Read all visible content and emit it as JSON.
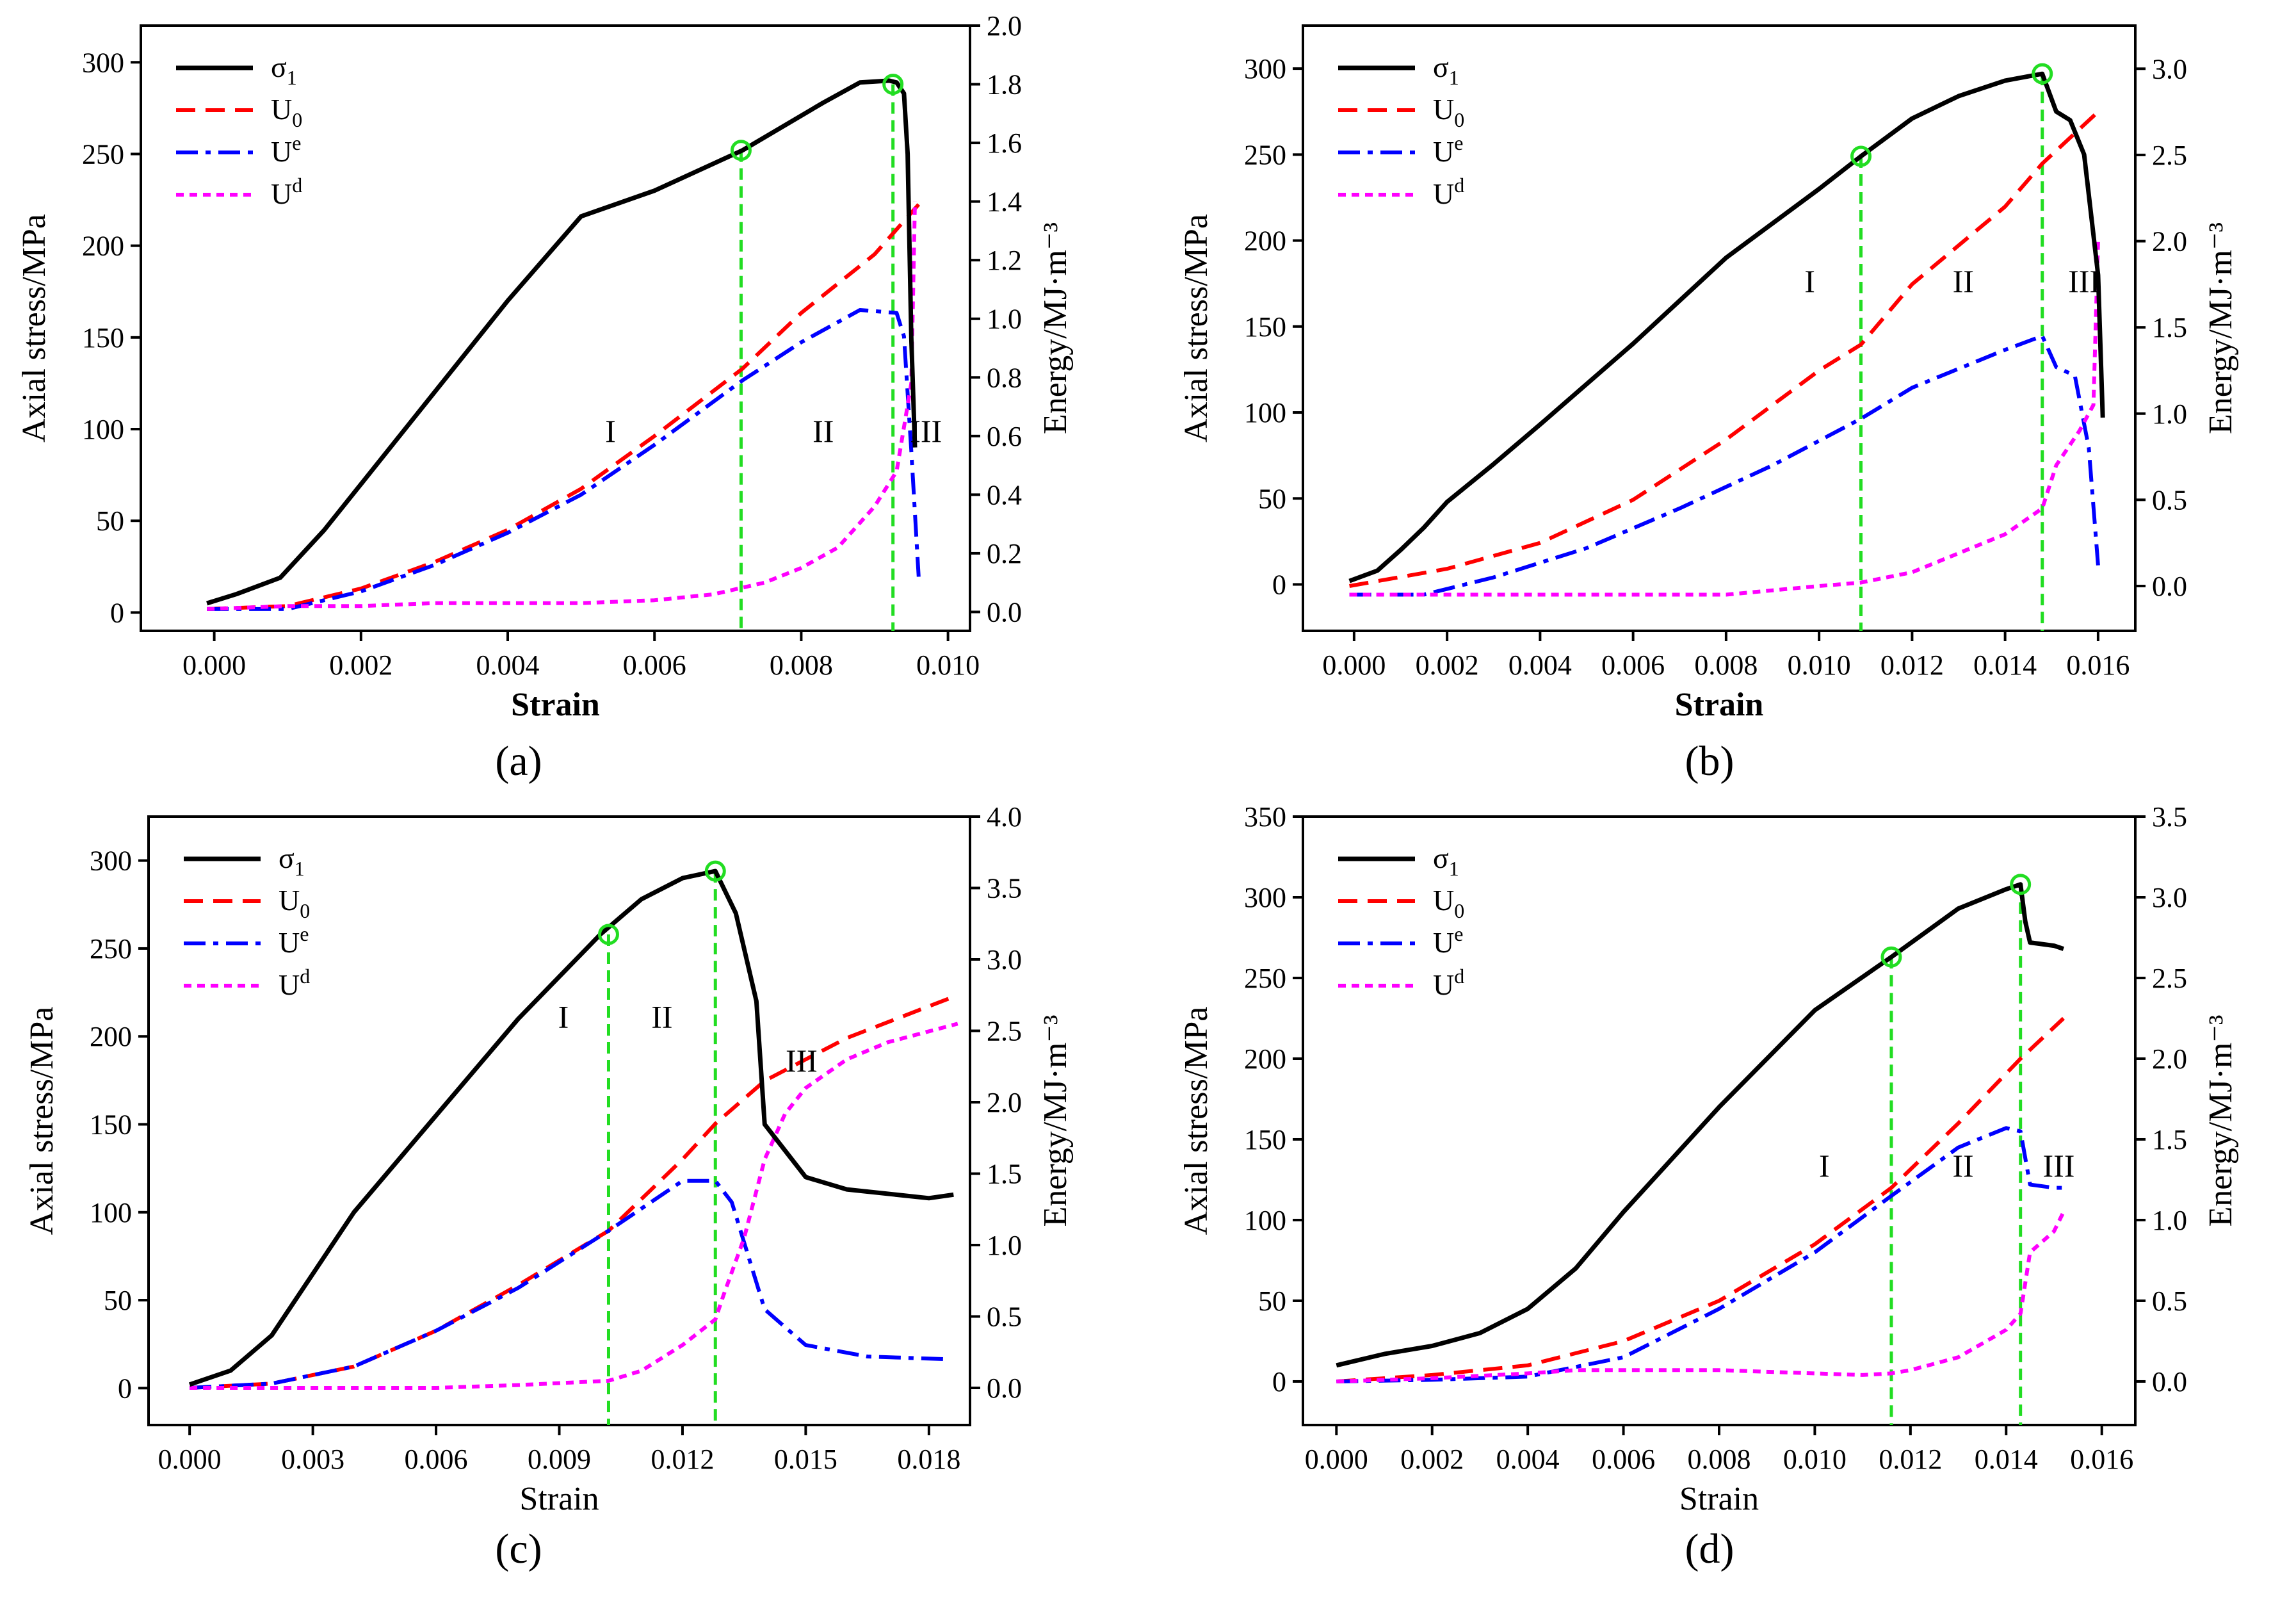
{
  "colors": {
    "sigma1": "#000000",
    "U0": "#ff0000",
    "Ue": "#0000ff",
    "Ud": "#ff00ff",
    "markers": "#22dd22"
  },
  "chart_data": [
    {
      "type": "line",
      "panel_label": "(a)",
      "xlabel": "Strain",
      "ylabel_left": "Axial stress/MPa",
      "ylabel_right": "Energy/MJ·m⁻³",
      "xlim": [
        -0.001,
        0.0103
      ],
      "ylim_left": [
        -10,
        320
      ],
      "ylim_right": [
        -0.0645,
        2.0
      ],
      "xticks": [
        0.0,
        0.002,
        0.004,
        0.006,
        0.008,
        0.01
      ],
      "xtick_decimals": 3,
      "yticks_left": [
        0,
        50,
        100,
        150,
        200,
        250,
        300
      ],
      "yticks_right": [
        0.0,
        0.2,
        0.4,
        0.6,
        0.8,
        1.0,
        1.2,
        1.4,
        1.6,
        1.8,
        2.0
      ],
      "ytick_right_decimals": 1,
      "legend": [
        {
          "key": "sigma1",
          "main": "σ",
          "sub": "1",
          "sup": ""
        },
        {
          "key": "U0",
          "main": "U",
          "sub": "0",
          "sup": ""
        },
        {
          "key": "Ue",
          "main": "U",
          "sub": "",
          "sup": "e"
        },
        {
          "key": "Ud",
          "main": "U",
          "sub": "",
          "sup": "d"
        }
      ],
      "stage_labels": [
        {
          "text": "I",
          "x": 0.0054,
          "y_left": 93
        },
        {
          "text": "II",
          "x": 0.0083,
          "y_left": 93
        },
        {
          "text": "III",
          "x": 0.0097,
          "y_left": 93
        }
      ],
      "markers": [
        {
          "x": 0.00718,
          "y_left": 252
        },
        {
          "x": 0.00925,
          "y_left": 288
        }
      ],
      "stress": {
        "x": [
          -0.0001,
          0.0003,
          0.0009,
          0.0015,
          0.002,
          0.003,
          0.004,
          0.005,
          0.006,
          0.0072,
          0.0083,
          0.0088,
          0.0092,
          0.0093,
          0.0094,
          0.00945,
          0.0095,
          0.00955
        ],
        "y": [
          5,
          10,
          19,
          45,
          70,
          120,
          170,
          216,
          230,
          252,
          278,
          289,
          290,
          289,
          283,
          250,
          150,
          90
        ]
      },
      "U0": {
        "x": [
          -0.0001,
          0.001,
          0.002,
          0.003,
          0.004,
          0.005,
          0.006,
          0.0072,
          0.008,
          0.009,
          0.0096
        ],
        "y": [
          0.01,
          0.02,
          0.08,
          0.17,
          0.28,
          0.42,
          0.6,
          0.83,
          1.02,
          1.22,
          1.39
        ]
      },
      "Ue": {
        "x": [
          -0.0001,
          0.001,
          0.002,
          0.003,
          0.004,
          0.005,
          0.006,
          0.0072,
          0.008,
          0.0088,
          0.0093,
          0.0094,
          0.0095,
          0.0096
        ],
        "y": [
          0.01,
          0.01,
          0.07,
          0.16,
          0.27,
          0.4,
          0.57,
          0.79,
          0.92,
          1.03,
          1.02,
          0.94,
          0.55,
          0.12
        ]
      },
      "Ud": {
        "x": [
          -0.0001,
          0.001,
          0.002,
          0.003,
          0.004,
          0.005,
          0.006,
          0.0068,
          0.0075,
          0.008,
          0.0085,
          0.009,
          0.0093,
          0.0095,
          0.00955
        ],
        "y": [
          0.01,
          0.02,
          0.02,
          0.03,
          0.03,
          0.03,
          0.04,
          0.06,
          0.1,
          0.15,
          0.22,
          0.36,
          0.48,
          0.78,
          1.4
        ]
      }
    },
    {
      "type": "line",
      "panel_label": "(b)",
      "xlabel": "Strain",
      "ylabel_left": "Axial stress/MPa",
      "ylabel_right": "Energy/MJ·m⁻³",
      "xlim": [
        -0.0011,
        0.0168
      ],
      "ylim_left": [
        -27,
        325
      ],
      "ylim_right": [
        -0.26,
        3.25
      ],
      "xticks": [
        0.0,
        0.002,
        0.004,
        0.006,
        0.008,
        0.01,
        0.012,
        0.014,
        0.016
      ],
      "xtick_decimals": 3,
      "yticks_left": [
        0,
        50,
        100,
        150,
        200,
        250,
        300
      ],
      "yticks_right": [
        0.0,
        0.5,
        1.0,
        1.5,
        2.0,
        2.5,
        3.0
      ],
      "ytick_right_decimals": 1,
      "legend": [
        {
          "key": "sigma1",
          "main": "σ",
          "sub": "1",
          "sup": ""
        },
        {
          "key": "U0",
          "main": "U",
          "sub": "0",
          "sup": ""
        },
        {
          "key": "Ue",
          "main": "U",
          "sub": "",
          "sup": "e"
        },
        {
          "key": "Ud",
          "main": "U",
          "sub": "",
          "sup": "d"
        }
      ],
      "stage_labels": [
        {
          "text": "I",
          "x": 0.0098,
          "y_left": 170
        },
        {
          "text": "II",
          "x": 0.0131,
          "y_left": 170
        },
        {
          "text": "III",
          "x": 0.0157,
          "y_left": 170
        }
      ],
      "markers": [
        {
          "x": 0.0109,
          "y_left": 249
        },
        {
          "x": 0.0148,
          "y_left": 297
        }
      ],
      "stress": {
        "x": [
          -0.0001,
          0.0005,
          0.001,
          0.0015,
          0.002,
          0.003,
          0.004,
          0.006,
          0.008,
          0.01,
          0.0109,
          0.012,
          0.013,
          0.014,
          0.0148,
          0.0151,
          0.0154,
          0.0157,
          0.016,
          0.0161
        ],
        "y": [
          2,
          8,
          20,
          33,
          48,
          70,
          93,
          140,
          190,
          230,
          249,
          271,
          284,
          293,
          297,
          275,
          270,
          250,
          180,
          97
        ]
      },
      "U0": {
        "x": [
          -0.0001,
          0.002,
          0.004,
          0.006,
          0.008,
          0.01,
          0.0109,
          0.012,
          0.014,
          0.0148,
          0.016
        ],
        "y": [
          0,
          0.1,
          0.25,
          0.5,
          0.85,
          1.25,
          1.4,
          1.75,
          2.2,
          2.45,
          2.75
        ]
      },
      "Ue": {
        "x": [
          -0.0001,
          0.0015,
          0.003,
          0.005,
          0.007,
          0.009,
          0.0109,
          0.012,
          0.014,
          0.0148,
          0.0151,
          0.0155,
          0.0158,
          0.016
        ],
        "y": [
          -0.05,
          -0.05,
          0.05,
          0.22,
          0.45,
          0.7,
          0.97,
          1.15,
          1.37,
          1.45,
          1.27,
          1.22,
          0.8,
          0.12
        ]
      },
      "Ud": {
        "x": [
          -0.0001,
          0.002,
          0.004,
          0.006,
          0.008,
          0.01,
          0.0109,
          0.012,
          0.014,
          0.0148,
          0.0151,
          0.0156,
          0.0159,
          0.016
        ],
        "y": [
          -0.05,
          -0.05,
          -0.05,
          -0.05,
          -0.05,
          0.0,
          0.02,
          0.08,
          0.3,
          0.45,
          0.7,
          0.9,
          1.05,
          2.0
        ]
      }
    },
    {
      "type": "line",
      "panel_label": "(c)",
      "xlabel": "Strain",
      "ylabel_left": "Axial stress/MPa",
      "ylabel_right": "Energy/MJ·m⁻³",
      "xlim": [
        -0.001,
        0.019
      ],
      "ylim_left": [
        -21,
        325
      ],
      "ylim_right": [
        -0.26,
        4.0
      ],
      "xticks": [
        0.0,
        0.003,
        0.006,
        0.009,
        0.012,
        0.015,
        0.018
      ],
      "xtick_decimals": 3,
      "yticks_left": [
        0,
        50,
        100,
        150,
        200,
        250,
        300
      ],
      "yticks_right": [
        0.0,
        0.5,
        1.0,
        1.5,
        2.0,
        2.5,
        3.0,
        3.5,
        4.0
      ],
      "ytick_right_decimals": 1,
      "legend": [
        {
          "key": "sigma1",
          "main": "σ",
          "sub": "1",
          "sup": ""
        },
        {
          "key": "U0",
          "main": "U",
          "sub": "0",
          "sup": ""
        },
        {
          "key": "Ue",
          "main": "U",
          "sub": "",
          "sup": "e"
        },
        {
          "key": "Ud",
          "main": "U",
          "sub": "",
          "sup": "d"
        }
      ],
      "stage_labels": [
        {
          "text": "I",
          "x": 0.0091,
          "y_left": 205
        },
        {
          "text": "II",
          "x": 0.0115,
          "y_left": 205
        },
        {
          "text": "III",
          "x": 0.0149,
          "y_left": 180
        }
      ],
      "markers": [
        {
          "x": 0.0102,
          "y_left": 258
        },
        {
          "x": 0.0128,
          "y_left": 294
        }
      ],
      "stress": {
        "x": [
          0,
          0.001,
          0.002,
          0.003,
          0.004,
          0.006,
          0.008,
          0.01,
          0.011,
          0.012,
          0.0128,
          0.0133,
          0.0138,
          0.014,
          0.0145,
          0.015,
          0.016,
          0.018,
          0.0186
        ],
        "y": [
          2,
          10,
          30,
          65,
          100,
          155,
          210,
          258,
          278,
          290,
          294,
          270,
          220,
          150,
          135,
          120,
          113,
          108,
          110
        ]
      },
      "U0": {
        "x": [
          0,
          0.002,
          0.004,
          0.006,
          0.008,
          0.0102,
          0.012,
          0.0128,
          0.014,
          0.015,
          0.016,
          0.0187
        ],
        "y": [
          0,
          0.03,
          0.15,
          0.4,
          0.72,
          1.1,
          1.6,
          1.85,
          2.15,
          2.3,
          2.45,
          2.75
        ]
      },
      "Ue": {
        "x": [
          0,
          0.002,
          0.004,
          0.006,
          0.008,
          0.0102,
          0.012,
          0.0128,
          0.0132,
          0.014,
          0.015,
          0.0165,
          0.0185
        ],
        "y": [
          0,
          0.03,
          0.15,
          0.4,
          0.7,
          1.1,
          1.45,
          1.45,
          1.3,
          0.55,
          0.3,
          0.22,
          0.2
        ]
      },
      "Ud": {
        "x": [
          0,
          0.002,
          0.004,
          0.006,
          0.008,
          0.0102,
          0.011,
          0.012,
          0.0128,
          0.013,
          0.0135,
          0.014,
          0.0145,
          0.015,
          0.016,
          0.017,
          0.0187
        ],
        "y": [
          0,
          0,
          0,
          0,
          0.02,
          0.05,
          0.12,
          0.3,
          0.48,
          0.65,
          1.05,
          1.6,
          1.92,
          2.1,
          2.3,
          2.42,
          2.55
        ]
      }
    },
    {
      "type": "line",
      "panel_label": "(d)",
      "xlabel": "Strain",
      "ylabel_left": "Axial stress/MPa",
      "ylabel_right": "Energy/MJ·m⁻³",
      "xlim": [
        -0.0007,
        0.0167
      ],
      "ylim_left": [
        -27,
        350
      ],
      "ylim_right": [
        -0.27,
        3.5
      ],
      "xticks": [
        0.0,
        0.002,
        0.004,
        0.006,
        0.008,
        0.01,
        0.012,
        0.014,
        0.016
      ],
      "xtick_decimals": 3,
      "yticks_left": [
        0,
        50,
        100,
        150,
        200,
        250,
        300,
        350
      ],
      "yticks_right": [
        0.0,
        0.5,
        1.0,
        1.5,
        2.0,
        2.5,
        3.0,
        3.5
      ],
      "ytick_right_decimals": 1,
      "legend": [
        {
          "key": "sigma1",
          "main": "σ",
          "sub": "1",
          "sup": ""
        },
        {
          "key": "U0",
          "main": "U",
          "sub": "0",
          "sup": ""
        },
        {
          "key": "Ue",
          "main": "U",
          "sub": "",
          "sup": "e"
        },
        {
          "key": "Ud",
          "main": "U",
          "sub": "",
          "sup": "d"
        }
      ],
      "stage_labels": [
        {
          "text": "I",
          "x": 0.0102,
          "y_left": 127
        },
        {
          "text": "II",
          "x": 0.0131,
          "y_left": 127
        },
        {
          "text": "III",
          "x": 0.0151,
          "y_left": 127
        }
      ],
      "markers": [
        {
          "x": 0.0116,
          "y_left": 263
        },
        {
          "x": 0.0143,
          "y_left": 308
        }
      ],
      "stress": {
        "x": [
          0,
          0.001,
          0.002,
          0.003,
          0.004,
          0.005,
          0.006,
          0.008,
          0.01,
          0.0116,
          0.013,
          0.014,
          0.0143,
          0.0144,
          0.0145,
          0.015,
          0.0152
        ],
        "y": [
          10,
          17,
          22,
          30,
          45,
          70,
          105,
          170,
          230,
          263,
          293,
          305,
          308,
          285,
          272,
          270,
          268
        ]
      },
      "U0": {
        "x": [
          0,
          0.002,
          0.004,
          0.006,
          0.008,
          0.01,
          0.0116,
          0.013,
          0.0143,
          0.0152
        ],
        "y": [
          0,
          0.04,
          0.1,
          0.25,
          0.5,
          0.85,
          1.2,
          1.6,
          2.0,
          2.25
        ]
      },
      "Ue": {
        "x": [
          0,
          0.002,
          0.004,
          0.006,
          0.008,
          0.01,
          0.0116,
          0.013,
          0.014,
          0.0143,
          0.0145,
          0.015,
          0.0152
        ],
        "y": [
          0,
          0.01,
          0.03,
          0.15,
          0.45,
          0.8,
          1.15,
          1.45,
          1.57,
          1.55,
          1.22,
          1.2,
          1.2
        ]
      },
      "Ud": {
        "x": [
          0,
          0.002,
          0.004,
          0.005,
          0.006,
          0.008,
          0.01,
          0.011,
          0.0116,
          0.012,
          0.013,
          0.014,
          0.0143,
          0.0145,
          0.015,
          0.0152
        ],
        "y": [
          0,
          0.02,
          0.05,
          0.07,
          0.07,
          0.07,
          0.05,
          0.04,
          0.05,
          0.07,
          0.15,
          0.32,
          0.42,
          0.8,
          0.93,
          1.05
        ]
      }
    }
  ]
}
